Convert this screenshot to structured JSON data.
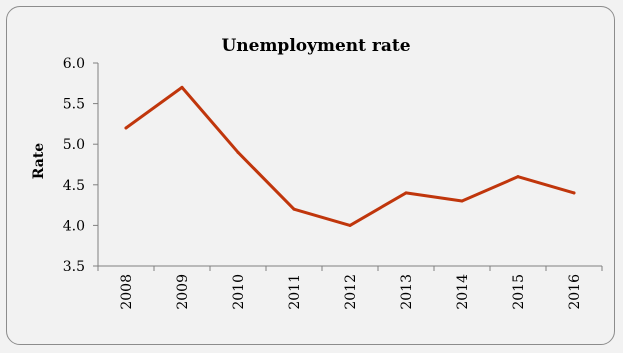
{
  "chart_data": {
    "type": "line",
    "title": "Unemployment rate",
    "xlabel": "",
    "ylabel": "Rate",
    "categories": [
      "2008",
      "2009",
      "2010",
      "2011",
      "2012",
      "2013",
      "2014",
      "2015",
      "2016"
    ],
    "series": [
      {
        "name": "",
        "values": [
          5.2,
          5.7,
          4.9,
          4.2,
          4.0,
          4.4,
          4.3,
          4.6,
          4.4
        ]
      }
    ],
    "ylim": [
      3.5,
      6.0
    ],
    "yticks": [
      "3.5",
      "4.0",
      "4.5",
      "5.0",
      "5.5",
      "6.0"
    ],
    "grid": false,
    "legend": "none",
    "colors": {
      "line": "#c0360c",
      "axis": "#808080",
      "background": "#f2f2f2"
    }
  }
}
